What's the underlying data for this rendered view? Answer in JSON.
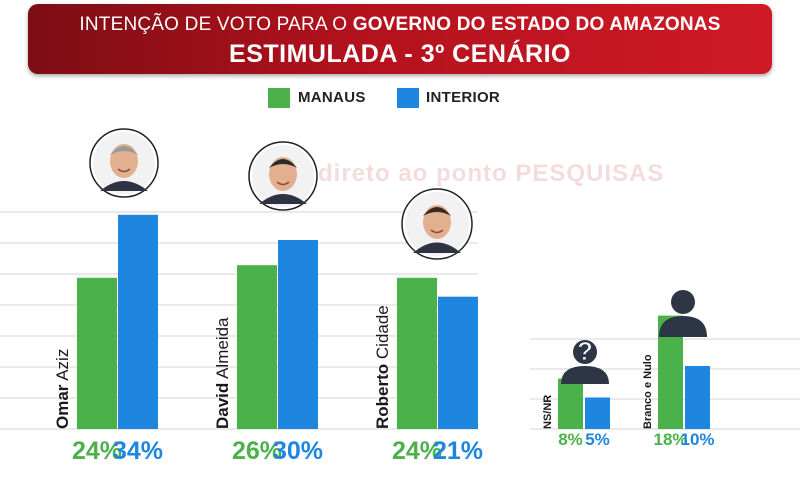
{
  "header": {
    "title_prefix": "INTENÇÃO DE VOTO PARA O",
    "title_bold": "GOVERNO DO ESTADO DO AMAZONAS",
    "subtitle": "ESTIMULADA - 3º CENÁRIO"
  },
  "colors": {
    "manaus": "#4bb24b",
    "interior": "#1f86e0",
    "banner": "#b3121d"
  },
  "chart_data": {
    "type": "bar",
    "categories": [
      "Omar Aziz",
      "David Almeida",
      "Roberto Cidade",
      "NS/NR",
      "Branco e Nulo"
    ],
    "series": [
      {
        "name": "MANAUS",
        "values": [
          24,
          26,
          24,
          8,
          18
        ]
      },
      {
        "name": "INTERIOR",
        "values": [
          34,
          30,
          21,
          5,
          10
        ]
      }
    ],
    "value_suffix": "%",
    "legend": [
      "MANAUS",
      "INTERIOR"
    ],
    "legend_position": "top-center",
    "grid": true,
    "ylim": [
      0,
      40
    ]
  },
  "candidates": [
    {
      "first": "Omar",
      "last": "Aziz",
      "icon": "candidate-photo"
    },
    {
      "first": "David",
      "last": "Almeida",
      "icon": "candidate-photo"
    },
    {
      "first": "Roberto",
      "last": "Cidade",
      "icon": "candidate-photo"
    }
  ],
  "others": [
    {
      "label": "NS/NR",
      "icon": "question-person-icon"
    },
    {
      "label": "Branco e Nulo",
      "icon": "person-silhouette-icon"
    }
  ],
  "watermark": "direto ao ponto PESQUISAS"
}
